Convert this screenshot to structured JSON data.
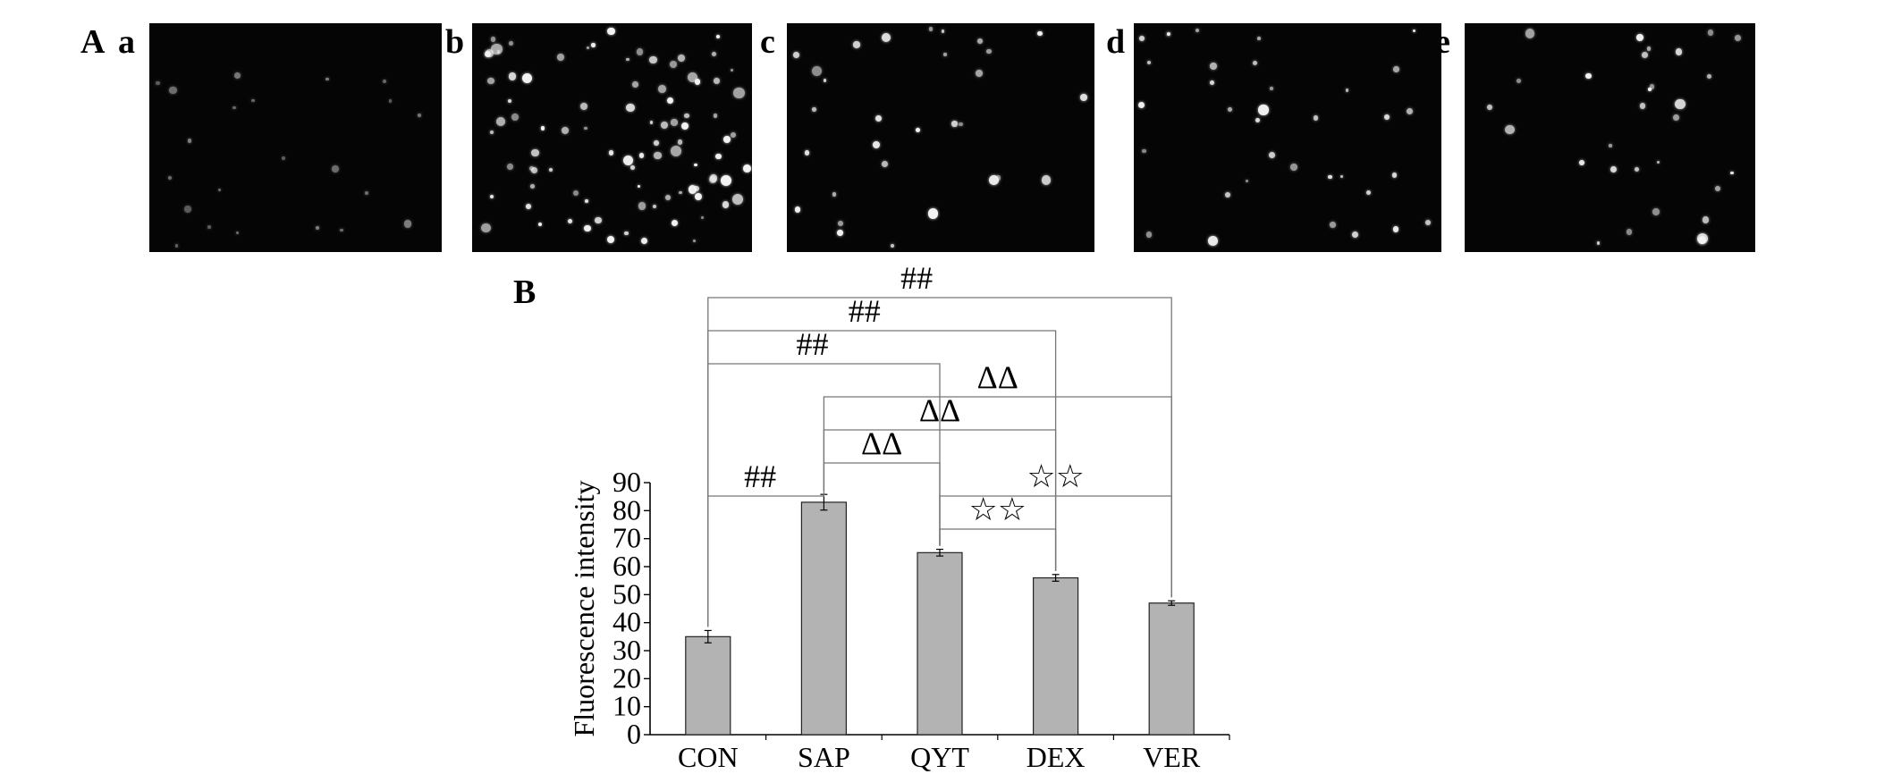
{
  "panel_labels": {
    "A": "A",
    "B": "B",
    "sub": [
      "a",
      "b",
      "c",
      "d",
      "e"
    ]
  },
  "micrographs": [
    {
      "id": "a",
      "dots": 22,
      "brightness": 0.25
    },
    {
      "id": "b",
      "dots": 90,
      "brightness": 0.85
    },
    {
      "id": "c",
      "dots": 30,
      "brightness": 0.75
    },
    {
      "id": "d",
      "dots": 35,
      "brightness": 0.7
    },
    {
      "id": "e",
      "dots": 30,
      "brightness": 0.75
    }
  ],
  "chart_data": {
    "type": "bar",
    "categories": [
      "CON",
      "SAP",
      "QYT",
      "DEX",
      "VER"
    ],
    "values": [
      35,
      83,
      65,
      56,
      47
    ],
    "errors": [
      2.2,
      2.8,
      1.2,
      1.2,
      0.8
    ],
    "ylabel": "Fluorescence intensity",
    "xlabel": "",
    "ylim": [
      0,
      90
    ],
    "yticks": [
      0,
      10,
      20,
      30,
      40,
      50,
      60,
      70,
      80,
      90
    ],
    "bar_color": "#b3b3b3",
    "grid": false,
    "significance": [
      {
        "from": "CON",
        "to": "SAP",
        "label": "##",
        "level": 1
      },
      {
        "from": "CON",
        "to": "QYT",
        "label": "##",
        "level": 5
      },
      {
        "from": "CON",
        "to": "DEX",
        "label": "##",
        "level": 6
      },
      {
        "from": "CON",
        "to": "VER",
        "label": "##",
        "level": 7
      },
      {
        "from": "SAP",
        "to": "QYT",
        "label": "ΔΔ",
        "level": 2
      },
      {
        "from": "SAP",
        "to": "DEX",
        "label": "ΔΔ",
        "level": 3
      },
      {
        "from": "SAP",
        "to": "VER",
        "label": "ΔΔ",
        "level": 4
      },
      {
        "from": "QYT",
        "to": "DEX",
        "label": "☆☆",
        "level": 0
      },
      {
        "from": "QYT",
        "to": "VER",
        "label": "☆☆",
        "level": 1
      }
    ]
  }
}
